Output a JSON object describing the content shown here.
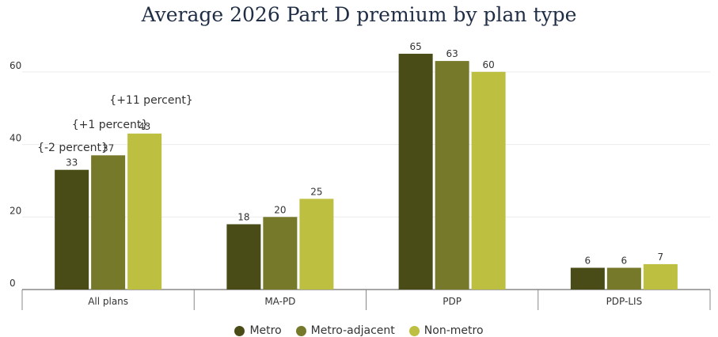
{
  "chart_data": {
    "type": "bar",
    "title": "Average 2026 Part D premium by plan type",
    "categories": [
      "All plans",
      "MA-PD",
      "PDP",
      "PDP-LIS"
    ],
    "series": [
      {
        "name": "Metro",
        "color": "#4a4c18",
        "values": [
          33,
          18,
          65,
          6
        ]
      },
      {
        "name": "Metro-adjacent",
        "color": "#76782a",
        "values": [
          37,
          20,
          63,
          6
        ]
      },
      {
        "name": "Non-metro",
        "color": "#bdbf40",
        "values": [
          43,
          25,
          60,
          7
        ]
      }
    ],
    "yticks": [
      0,
      20,
      40,
      60
    ],
    "ylim": [
      0,
      70
    ],
    "grid": true,
    "legend_position": "bottom",
    "annotations": [
      {
        "text": "{-2 percent}",
        "category": "All plans",
        "level": 1
      },
      {
        "text": "{+1 percent}",
        "category": "All plans",
        "level": 2
      },
      {
        "text": "{+11 percent}",
        "category": "All plans",
        "level": 3
      }
    ]
  }
}
